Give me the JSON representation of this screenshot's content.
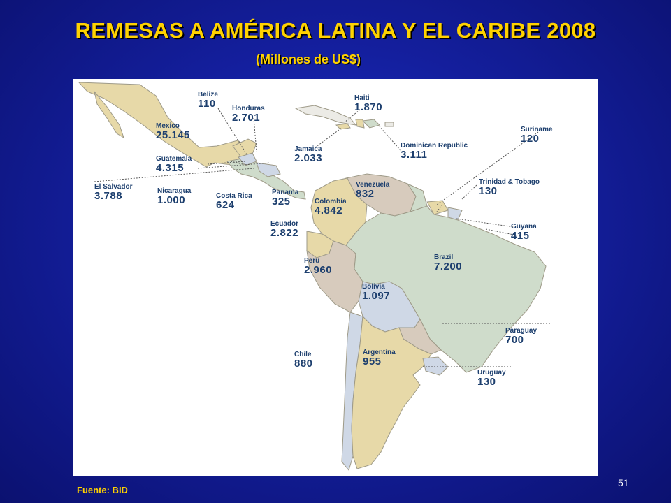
{
  "title": "REMESAS A AMÉRICA LATINA Y EL CARIBE 2008",
  "subtitle": "(Millones de US$)",
  "source": "Fuente: BID",
  "page_number": "51",
  "colors": {
    "title": "#ffd200",
    "background": "#141f9e",
    "label_text": "#1d3f6e",
    "land_tan": "#e7d9a8",
    "land_green": "#cfdccb",
    "land_blue": "#cfd8e6",
    "land_taupe": "#d7cbbd"
  },
  "countries": [
    {
      "name": "Belize",
      "value": "110"
    },
    {
      "name": "Honduras",
      "value": "2.701"
    },
    {
      "name": "Haiti",
      "value": "1.870"
    },
    {
      "name": "Mexico",
      "value": "25.145"
    },
    {
      "name": "Suriname",
      "value": "120"
    },
    {
      "name": "Jamaica",
      "value": "2.033"
    },
    {
      "name": "Dominican Republic",
      "value": "3.111"
    },
    {
      "name": "Guatemala",
      "value": "4.315"
    },
    {
      "name": "Trinidad & Tobago",
      "value": "130"
    },
    {
      "name": "El Salvador",
      "value": "3.788"
    },
    {
      "name": "Nicaragua",
      "value": "1.000"
    },
    {
      "name": "Costa Rica",
      "value": "624"
    },
    {
      "name": "Panama",
      "value": "325"
    },
    {
      "name": "Venezuela",
      "value": "832"
    },
    {
      "name": "Colombia",
      "value": "4.842"
    },
    {
      "name": "Guyana",
      "value": "415"
    },
    {
      "name": "Ecuador",
      "value": "2.822"
    },
    {
      "name": "Brazil",
      "value": "7.200"
    },
    {
      "name": "Peru",
      "value": "2.960"
    },
    {
      "name": "Bolivia",
      "value": "1.097"
    },
    {
      "name": "Paraguay",
      "value": "700"
    },
    {
      "name": "Chile",
      "value": "880"
    },
    {
      "name": "Argentina",
      "value": "955"
    },
    {
      "name": "Uruguay",
      "value": "130"
    }
  ]
}
